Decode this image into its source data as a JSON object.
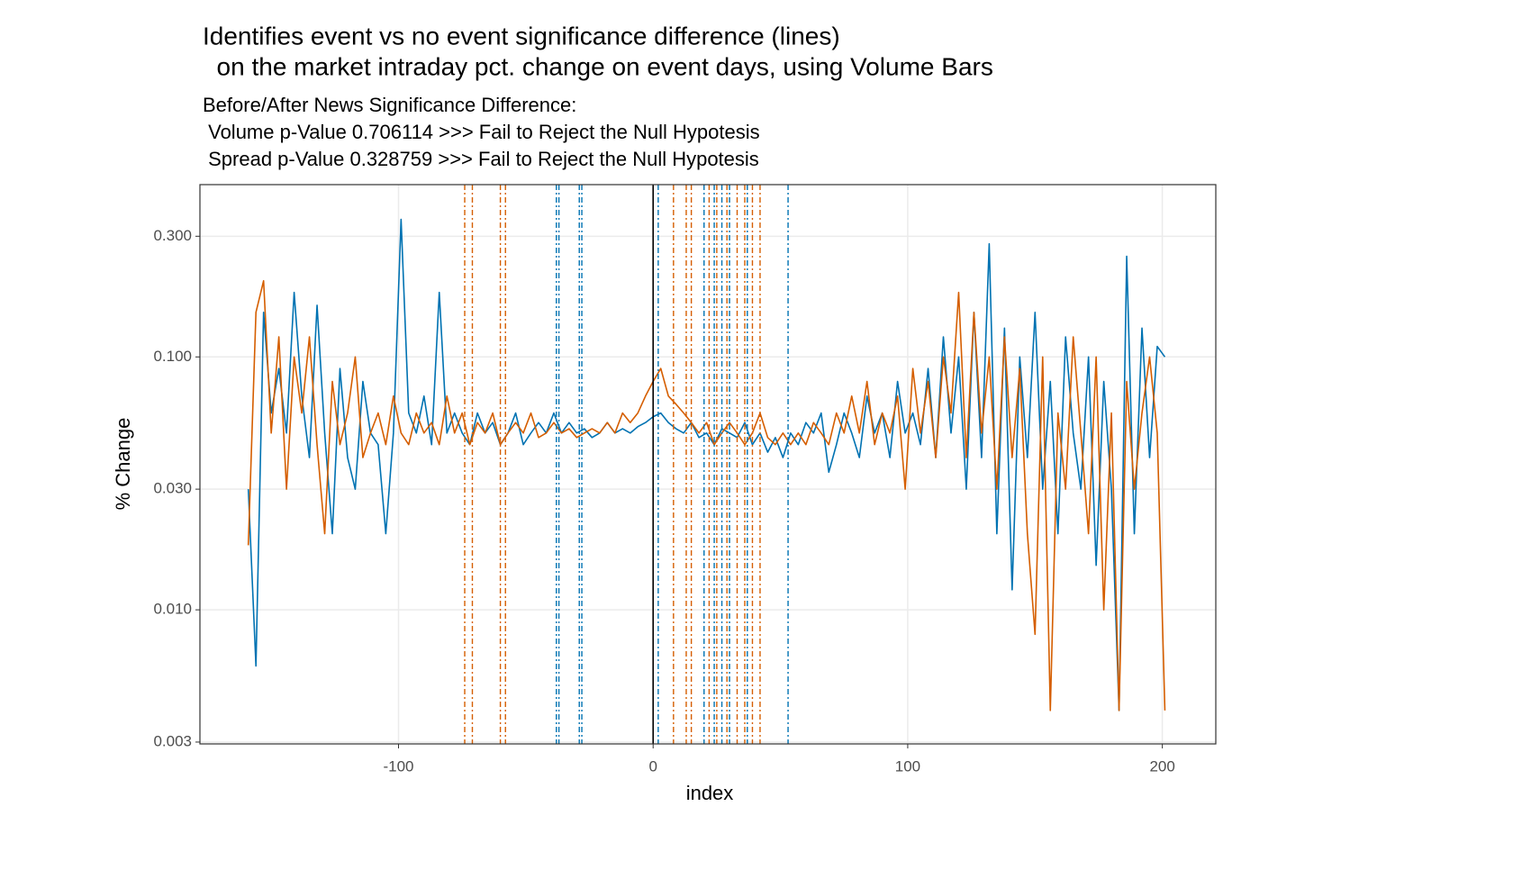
{
  "chart_data": {
    "type": "line",
    "title": [
      "Identifies event vs no event significance difference (lines)",
      "  on the market intraday pct. change on event days, using Volume Bars"
    ],
    "subtitle": [
      "Before/After News Significance Difference:",
      " Volume p-Value 0.706114 >>> Fail to Reject the Null Hypotesis",
      " Spread p-Value 0.328759 >>> Fail to Reject the Null Hypotesis"
    ],
    "xlabel": "index",
    "ylabel": "% Change",
    "log_y": true,
    "grid": true,
    "xlim": [
      -178,
      221
    ],
    "ylim": [
      0.00295,
      0.48
    ],
    "xticks": [
      -100,
      0,
      100,
      200
    ],
    "yticks": [
      0.003,
      {
        "value": 0.01,
        "label": "0.010"
      },
      {
        "value": 0.03,
        "label": "0.030"
      },
      {
        "value": 0.1,
        "label": "0.100"
      },
      {
        "value": 0.3,
        "label": "0.300"
      }
    ],
    "x": [
      -159,
      -156,
      -153,
      -150,
      -147,
      -144,
      -141,
      -138,
      -135,
      -132,
      -129,
      -126,
      -123,
      -120,
      -117,
      -114,
      -111,
      -108,
      -105,
      -102,
      -99,
      -96,
      -93,
      -90,
      -87,
      -84,
      -81,
      -78,
      -75,
      -72,
      -69,
      -66,
      -63,
      -60,
      -57,
      -54,
      -51,
      -48,
      -45,
      -42,
      -39,
      -36,
      -33,
      -30,
      -27,
      -24,
      -21,
      -18,
      -15,
      -12,
      -9,
      -6,
      -3,
      0,
      3,
      6,
      9,
      12,
      15,
      18,
      21,
      24,
      27,
      30,
      33,
      36,
      39,
      42,
      45,
      48,
      51,
      54,
      57,
      60,
      63,
      66,
      69,
      72,
      75,
      78,
      81,
      84,
      87,
      90,
      93,
      96,
      99,
      102,
      105,
      108,
      111,
      114,
      117,
      120,
      123,
      126,
      129,
      132,
      135,
      138,
      141,
      144,
      147,
      150,
      153,
      156,
      159,
      162,
      165,
      168,
      171,
      174,
      177,
      180,
      183,
      186,
      189,
      192,
      195,
      198,
      201
    ],
    "series": [
      {
        "color": "#0072B2",
        "values": [
          0.03,
          0.006,
          0.15,
          0.06,
          0.09,
          0.05,
          0.18,
          0.07,
          0.04,
          0.16,
          0.05,
          0.02,
          0.09,
          0.04,
          0.03,
          0.08,
          0.05,
          0.045,
          0.02,
          0.05,
          0.35,
          0.06,
          0.05,
          0.07,
          0.045,
          0.18,
          0.05,
          0.06,
          0.05,
          0.045,
          0.06,
          0.05,
          0.055,
          0.045,
          0.05,
          0.06,
          0.045,
          0.05,
          0.055,
          0.05,
          0.06,
          0.05,
          0.055,
          0.05,
          0.052,
          0.048,
          0.05,
          0.055,
          0.05,
          0.052,
          0.05,
          0.053,
          0.055,
          0.058,
          0.06,
          0.055,
          0.052,
          0.05,
          0.055,
          0.048,
          0.05,
          0.045,
          0.052,
          0.05,
          0.048,
          0.055,
          0.045,
          0.05,
          0.042,
          0.048,
          0.04,
          0.05,
          0.045,
          0.055,
          0.05,
          0.06,
          0.035,
          0.045,
          0.06,
          0.05,
          0.04,
          0.07,
          0.05,
          0.06,
          0.04,
          0.08,
          0.05,
          0.06,
          0.045,
          0.09,
          0.04,
          0.12,
          0.05,
          0.1,
          0.03,
          0.15,
          0.04,
          0.28,
          0.02,
          0.13,
          0.012,
          0.1,
          0.04,
          0.15,
          0.03,
          0.08,
          0.02,
          0.12,
          0.05,
          0.03,
          0.1,
          0.015,
          0.08,
          0.03,
          0.004,
          0.25,
          0.02,
          0.13,
          0.04,
          0.11,
          0.1
        ]
      },
      {
        "color": "#D55E00",
        "values": [
          0.018,
          0.15,
          0.2,
          0.05,
          0.12,
          0.03,
          0.1,
          0.06,
          0.12,
          0.045,
          0.02,
          0.08,
          0.045,
          0.06,
          0.1,
          0.04,
          0.05,
          0.06,
          0.045,
          0.07,
          0.05,
          0.045,
          0.06,
          0.05,
          0.055,
          0.045,
          0.07,
          0.05,
          0.06,
          0.045,
          0.055,
          0.05,
          0.06,
          0.045,
          0.05,
          0.055,
          0.05,
          0.06,
          0.048,
          0.05,
          0.055,
          0.05,
          0.052,
          0.048,
          0.05,
          0.052,
          0.05,
          0.055,
          0.05,
          0.06,
          0.055,
          0.06,
          0.07,
          0.08,
          0.09,
          0.07,
          0.065,
          0.06,
          0.055,
          0.05,
          0.055,
          0.045,
          0.05,
          0.055,
          0.05,
          0.045,
          0.05,
          0.06,
          0.048,
          0.045,
          0.05,
          0.045,
          0.05,
          0.045,
          0.055,
          0.05,
          0.045,
          0.06,
          0.05,
          0.07,
          0.05,
          0.08,
          0.045,
          0.06,
          0.05,
          0.07,
          0.03,
          0.09,
          0.05,
          0.08,
          0.04,
          0.1,
          0.06,
          0.18,
          0.04,
          0.15,
          0.05,
          0.1,
          0.03,
          0.12,
          0.04,
          0.09,
          0.02,
          0.008,
          0.1,
          0.004,
          0.06,
          0.03,
          0.12,
          0.05,
          0.02,
          0.1,
          0.01,
          0.06,
          0.004,
          0.08,
          0.03,
          0.06,
          0.1,
          0.05,
          0.004
        ]
      }
    ],
    "event_lines": [
      {
        "color": "#D55E00",
        "x": [
          -74,
          -71,
          -60,
          -58,
          8,
          13,
          15,
          22,
          25,
          29,
          33,
          36,
          39,
          42
        ]
      },
      {
        "color": "#0072B2",
        "x": [
          -38,
          -37,
          -29,
          -28,
          2,
          20,
          24,
          27,
          30,
          37,
          53
        ]
      }
    ],
    "zero_line": {
      "x": 0,
      "color": "#000000"
    }
  }
}
